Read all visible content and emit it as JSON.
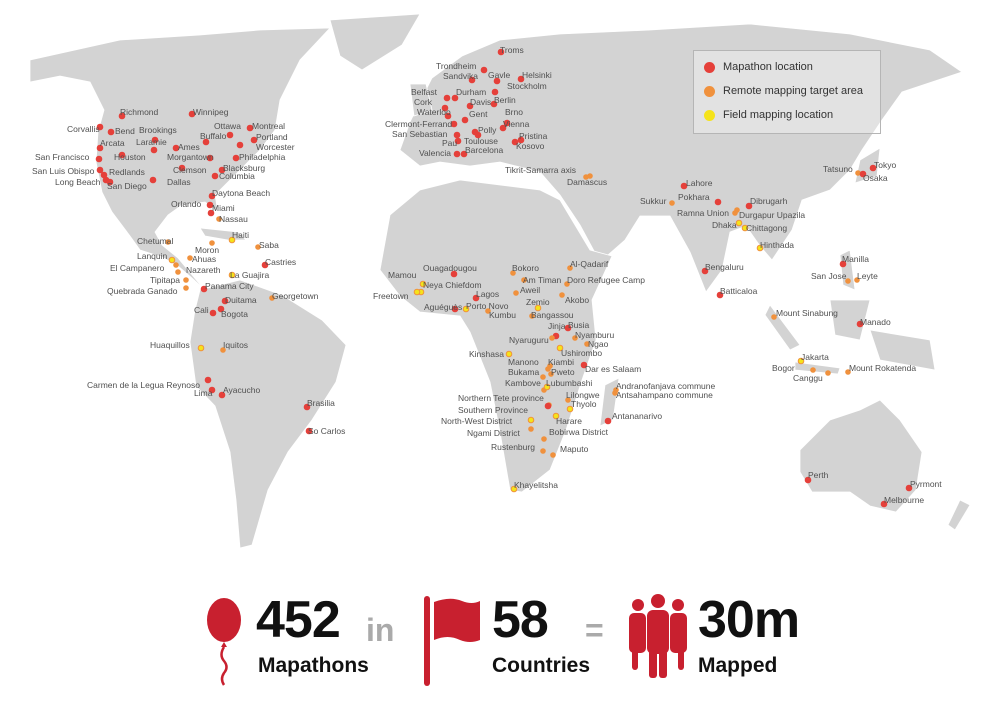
{
  "legend": {
    "items": [
      {
        "label": "Mapathon location",
        "color": "#e5403a"
      },
      {
        "label": "Remote mapping target area",
        "color": "#f0913d"
      },
      {
        "label": "Field mapping location",
        "color": "#f5e31a"
      }
    ]
  },
  "map": {
    "land_color": "#d3d3d3",
    "places": [
      {
        "name": "Richmond",
        "type": "mapathon"
      },
      {
        "name": "Winnipeg",
        "type": "mapathon"
      },
      {
        "name": "Corvallis",
        "type": "mapathon"
      },
      {
        "name": "Bend",
        "type": "mapathon"
      },
      {
        "name": "Brookings",
        "type": "mapathon"
      },
      {
        "name": "Ottawa",
        "type": "mapathon"
      },
      {
        "name": "Montreal",
        "type": "mapathon"
      },
      {
        "name": "Buffalo",
        "type": "mapathon"
      },
      {
        "name": "Portland",
        "type": "mapathon"
      },
      {
        "name": "Arcata",
        "type": "mapathon"
      },
      {
        "name": "Laramie",
        "type": "mapathon"
      },
      {
        "name": "Ames",
        "type": "mapathon"
      },
      {
        "name": "Worcester",
        "type": "mapathon"
      },
      {
        "name": "San Francisco",
        "type": "mapathon"
      },
      {
        "name": "Houston",
        "type": "mapathon"
      },
      {
        "name": "Morgantown",
        "type": "mapathon"
      },
      {
        "name": "Philadelphia",
        "type": "mapathon"
      },
      {
        "name": "Blacksburg",
        "type": "mapathon"
      },
      {
        "name": "Clemson",
        "type": "mapathon"
      },
      {
        "name": "San Luis Obispo",
        "type": "mapathon"
      },
      {
        "name": "Redlands",
        "type": "mapathon"
      },
      {
        "name": "Columbia",
        "type": "mapathon"
      },
      {
        "name": "Long Beach",
        "type": "mapathon"
      },
      {
        "name": "San Diego",
        "type": "mapathon"
      },
      {
        "name": "Dallas",
        "type": "mapathon"
      },
      {
        "name": "Daytona Beach",
        "type": "mapathon"
      },
      {
        "name": "Orlando",
        "type": "mapathon"
      },
      {
        "name": "Miami",
        "type": "mapathon"
      },
      {
        "name": "Nassau",
        "type": "remote"
      },
      {
        "name": "Haiti",
        "type": "field"
      },
      {
        "name": "Saba",
        "type": "remote"
      },
      {
        "name": "Chetumal",
        "type": "remote"
      },
      {
        "name": "Moron",
        "type": "remote"
      },
      {
        "name": "Lanquin",
        "type": "field"
      },
      {
        "name": "Ahuas",
        "type": "remote"
      },
      {
        "name": "Castries",
        "type": "mapathon"
      },
      {
        "name": "El Campanero",
        "type": "remote"
      },
      {
        "name": "Nazareth",
        "type": "remote"
      },
      {
        "name": "Tipitapa",
        "type": "remote"
      },
      {
        "name": "La Guajira",
        "type": "field"
      },
      {
        "name": "Quebrada Ganado",
        "type": "remote"
      },
      {
        "name": "Panama City",
        "type": "mapathon"
      },
      {
        "name": "Georgetown",
        "type": "remote"
      },
      {
        "name": "Duitama",
        "type": "mapathon"
      },
      {
        "name": "Cali",
        "type": "mapathon"
      },
      {
        "name": "Bogota",
        "type": "mapathon"
      },
      {
        "name": "Huaquillos",
        "type": "field"
      },
      {
        "name": "Iquitos",
        "type": "remote"
      },
      {
        "name": "Carmen de la Legua Reynoso",
        "type": "mapathon"
      },
      {
        "name": "Lima",
        "type": "mapathon"
      },
      {
        "name": "Ayacucho",
        "type": "mapathon"
      },
      {
        "name": "Brasilia",
        "type": "mapathon"
      },
      {
        "name": "So Carlos",
        "type": "mapathon"
      },
      {
        "name": "Troms",
        "type": "mapathon"
      },
      {
        "name": "Trondheim",
        "type": "mapathon"
      },
      {
        "name": "Sandvika",
        "type": "mapathon"
      },
      {
        "name": "Gavle",
        "type": "mapathon"
      },
      {
        "name": "Helsinki",
        "type": "mapathon"
      },
      {
        "name": "Belfast",
        "type": "mapathon"
      },
      {
        "name": "Durham",
        "type": "mapathon"
      },
      {
        "name": "Stockholm",
        "type": "mapathon"
      },
      {
        "name": "Cork",
        "type": "mapathon"
      },
      {
        "name": "Davis",
        "type": "mapathon"
      },
      {
        "name": "Berlin",
        "type": "mapathon"
      },
      {
        "name": "Waterloo",
        "type": "mapathon"
      },
      {
        "name": "Gent",
        "type": "mapathon"
      },
      {
        "name": "Brno",
        "type": "mapathon"
      },
      {
        "name": "Clermont-Ferrand",
        "type": "mapathon"
      },
      {
        "name": "Vienna",
        "type": "mapathon"
      },
      {
        "name": "San Sebastian",
        "type": "mapathon"
      },
      {
        "name": "Polly",
        "type": "mapathon"
      },
      {
        "name": "Pristina",
        "type": "mapathon"
      },
      {
        "name": "Pau",
        "type": "mapathon"
      },
      {
        "name": "Toulouse",
        "type": "mapathon"
      },
      {
        "name": "Kosovo",
        "type": "mapathon"
      },
      {
        "name": "Valencia",
        "type": "mapathon"
      },
      {
        "name": "Barcelona",
        "type": "mapathon"
      },
      {
        "name": "Tikrit-Samarra axis",
        "type": "remote"
      },
      {
        "name": "Damascus",
        "type": "remote"
      },
      {
        "name": "Ouagadougou",
        "type": "mapathon"
      },
      {
        "name": "Bokoro",
        "type": "remote"
      },
      {
        "name": "Al-Qadarif",
        "type": "remote"
      },
      {
        "name": "Mamou",
        "type": "field"
      },
      {
        "name": "Am Timan",
        "type": "remote"
      },
      {
        "name": "Doro Refugee Camp",
        "type": "remote"
      },
      {
        "name": "Neya Chiefdom",
        "type": "field"
      },
      {
        "name": "Aweil",
        "type": "remote"
      },
      {
        "name": "Freetown",
        "type": "field"
      },
      {
        "name": "Lagos",
        "type": "mapathon"
      },
      {
        "name": "Akobo",
        "type": "remote"
      },
      {
        "name": "Zemio",
        "type": "field"
      },
      {
        "name": "Aguéguès",
        "type": "mapathon"
      },
      {
        "name": "Porto Novo",
        "type": "field"
      },
      {
        "name": "Bangassou",
        "type": "remote"
      },
      {
        "name": "Kumbu",
        "type": "remote"
      },
      {
        "name": "Jinja",
        "type": "mapathon"
      },
      {
        "name": "Busia",
        "type": "mapathon"
      },
      {
        "name": "Nyamburu",
        "type": "remote"
      },
      {
        "name": "Nyaruguru",
        "type": "remote"
      },
      {
        "name": "Ngao",
        "type": "remote"
      },
      {
        "name": "Kinshasa",
        "type": "field"
      },
      {
        "name": "Ushirombo",
        "type": "field"
      },
      {
        "name": "Manono",
        "type": "remote"
      },
      {
        "name": "Kiambi",
        "type": "remote"
      },
      {
        "name": "Dar es Salaam",
        "type": "mapathon"
      },
      {
        "name": "Bukama",
        "type": "remote"
      },
      {
        "name": "Pweto",
        "type": "remote"
      },
      {
        "name": "Kambove",
        "type": "remote"
      },
      {
        "name": "Lubumbashi",
        "type": "field"
      },
      {
        "name": "Andranofanjava commune",
        "type": "remote"
      },
      {
        "name": "Antsahampano commune",
        "type": "remote"
      },
      {
        "name": "Northern Tete province",
        "type": "remote"
      },
      {
        "name": "Lilongwe",
        "type": "remote"
      },
      {
        "name": "Thyolo",
        "type": "field"
      },
      {
        "name": "Southern Province",
        "type": "mapathon"
      },
      {
        "name": "North-West District",
        "type": "field"
      },
      {
        "name": "Harare",
        "type": "field"
      },
      {
        "name": "Antananarivo",
        "type": "mapathon"
      },
      {
        "name": "Ngami District",
        "type": "remote"
      },
      {
        "name": "Bobirwa District",
        "type": "remote"
      },
      {
        "name": "Rustenburg",
        "type": "remote"
      },
      {
        "name": "Maputo",
        "type": "remote"
      },
      {
        "name": "Khayelitsha",
        "type": "field"
      },
      {
        "name": "Lahore",
        "type": "mapathon"
      },
      {
        "name": "Sukkur",
        "type": "remote"
      },
      {
        "name": "Pokhara",
        "type": "mapathon"
      },
      {
        "name": "Dibrugarh",
        "type": "mapathon"
      },
      {
        "name": "Ramna Union",
        "type": "remote"
      },
      {
        "name": "Durgapur Upazila",
        "type": "remote"
      },
      {
        "name": "Dhaka",
        "type": "field"
      },
      {
        "name": "Chittagong",
        "type": "field"
      },
      {
        "name": "Hinthada",
        "type": "field"
      },
      {
        "name": "Tatsuno",
        "type": "remote"
      },
      {
        "name": "Tokyo",
        "type": "mapathon"
      },
      {
        "name": "Osaka",
        "type": "mapathon"
      },
      {
        "name": "Bengaluru",
        "type": "mapathon"
      },
      {
        "name": "Manilla",
        "type": "mapathon"
      },
      {
        "name": "San Jose",
        "type": "remote"
      },
      {
        "name": "Leyte",
        "type": "remote"
      },
      {
        "name": "Batticaloa",
        "type": "mapathon"
      },
      {
        "name": "Mount Sinabung",
        "type": "remote"
      },
      {
        "name": "Manado",
        "type": "mapathon"
      },
      {
        "name": "Jakarta",
        "type": "field"
      },
      {
        "name": "Bogor",
        "type": "remote"
      },
      {
        "name": "Mount Rokatenda",
        "type": "remote"
      },
      {
        "name": "Canggu",
        "type": "remote"
      },
      {
        "name": "Perth",
        "type": "mapathon"
      },
      {
        "name": "Pyrmont",
        "type": "mapathon"
      },
      {
        "name": "Melbourne",
        "type": "mapathon"
      }
    ]
  },
  "stats": {
    "accent": "#c8202f",
    "mapathons": {
      "value": "452",
      "label": "Mapathons",
      "icon": "balloon-icon"
    },
    "joiner_in": "in",
    "countries": {
      "value": "58",
      "label": "Countries",
      "icon": "flag-icon"
    },
    "joiner_eq": "=",
    "mapped": {
      "value": "30m",
      "label": "Mapped",
      "icon": "people-icon"
    }
  }
}
